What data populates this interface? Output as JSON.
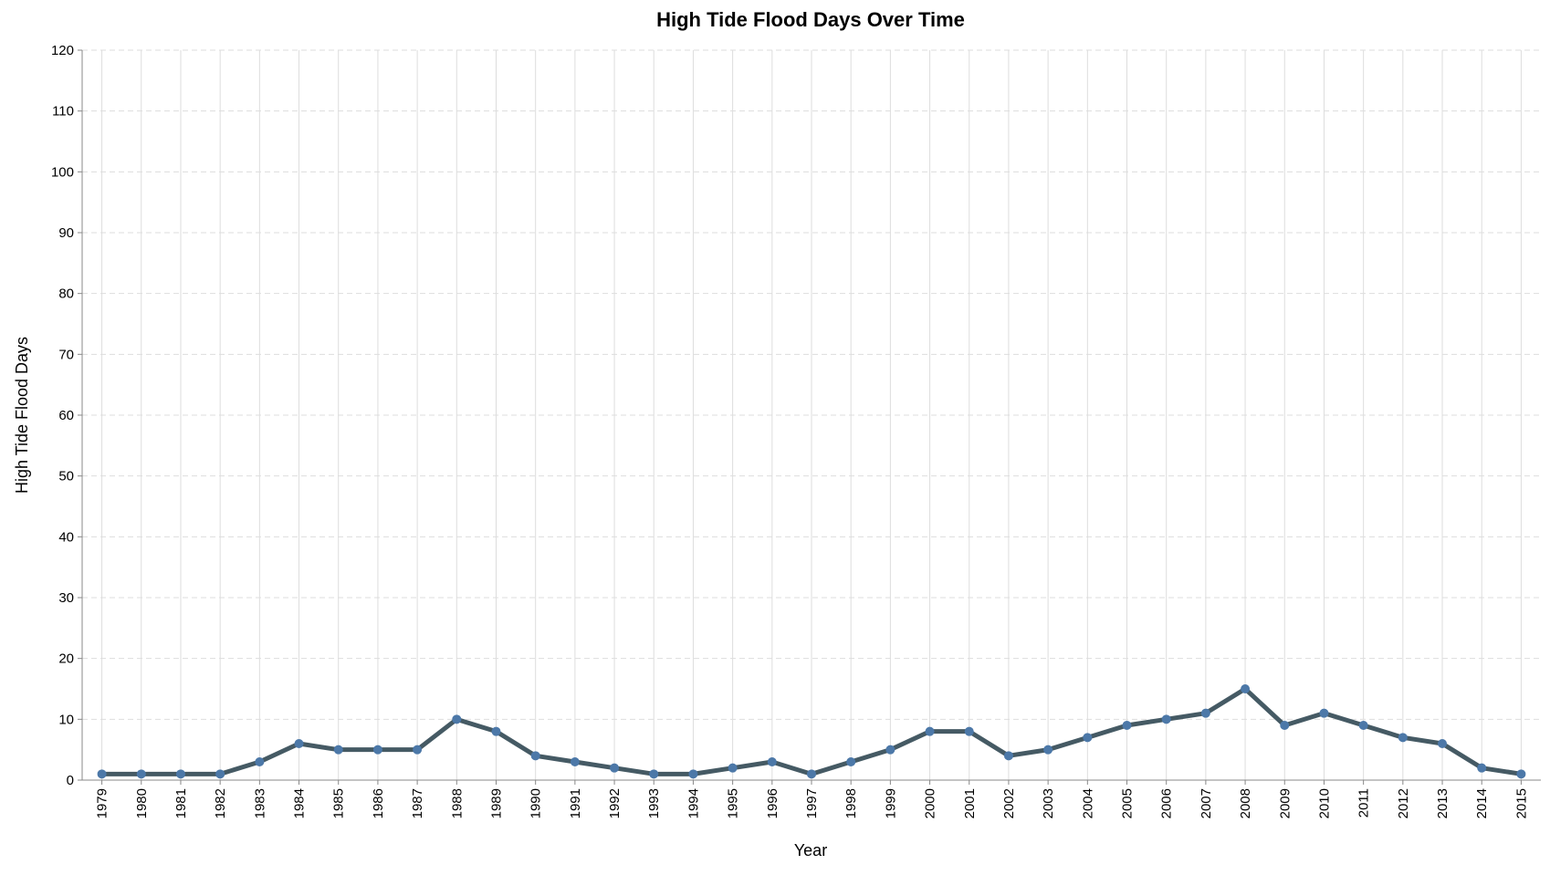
{
  "chart_data": {
    "type": "line",
    "title": "High Tide Flood Days Over Time",
    "xlabel": "Year",
    "ylabel": "High Tide Flood Days",
    "ylim": [
      0,
      120
    ],
    "y_ticks": [
      0,
      10,
      20,
      30,
      40,
      50,
      60,
      70,
      80,
      90,
      100,
      110,
      120
    ],
    "grid": true,
    "legend": "none",
    "colors": {
      "line": "#455a64",
      "point": "#4c78a8",
      "grid": "#dddddd",
      "axis": "#888888"
    },
    "x": [
      "1979",
      "1980",
      "1981",
      "1982",
      "1983",
      "1984",
      "1985",
      "1986",
      "1987",
      "1988",
      "1989",
      "1990",
      "1991",
      "1992",
      "1993",
      "1994",
      "1995",
      "1996",
      "1997",
      "1998",
      "1999",
      "2000",
      "2001",
      "2002",
      "2003",
      "2004",
      "2005",
      "2006",
      "2007",
      "2008",
      "2009",
      "2010",
      "2011",
      "2012",
      "2013",
      "2014",
      "2015"
    ],
    "series": [
      {
        "values": [
          1,
          1,
          1,
          1,
          3,
          6,
          5,
          5,
          5,
          10,
          8,
          4,
          3,
          2,
          1,
          1,
          2,
          3,
          1,
          3,
          5,
          8,
          8,
          4,
          5,
          7,
          9,
          10,
          11,
          15,
          9,
          11,
          9,
          7,
          6,
          2,
          1
        ]
      }
    ]
  }
}
